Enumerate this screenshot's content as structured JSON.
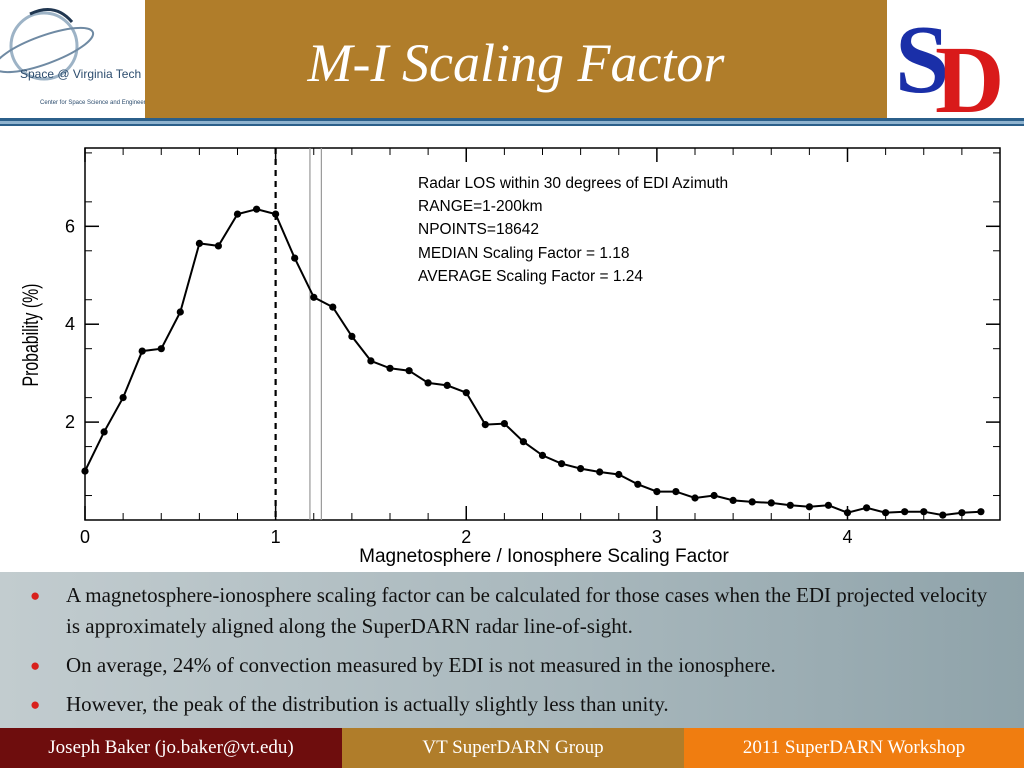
{
  "header": {
    "title": "M-I Scaling Factor",
    "left_logo": {
      "icon": "space-at-virginia-tech-logo",
      "name": "Space @ Virginia Tech",
      "subtitle": "Center for Space Science and Engineering Research"
    },
    "right_logo": {
      "icon": "superdarn-sd-logo",
      "letters": "SD"
    },
    "colors": {
      "banner": "#b07d2a",
      "stripe_dark": "#2b5f8a",
      "stripe_light": "#8fb3cf"
    }
  },
  "chart_data": {
    "type": "line",
    "xlabel": "Magnetosphere / Ionosphere Scaling Factor",
    "ylabel": "Probability (%)",
    "xlim": [
      0,
      4.8
    ],
    "ylim": [
      0,
      7.6
    ],
    "xticks": [
      0,
      1,
      2,
      3,
      4
    ],
    "yticks": [
      2,
      4,
      6
    ],
    "grid": false,
    "annotations": [
      "Radar LOS within 30 degrees of EDI Azimuth",
      "RANGE=1-200km",
      "NPOINTS=18642",
      "MEDIAN Scaling Factor = 1.18",
      "AVERAGE Scaling Factor = 1.24"
    ],
    "reference_lines": [
      {
        "x": 1.0,
        "style": "dashed",
        "color": "#000000"
      },
      {
        "x": 1.18,
        "style": "solid",
        "color": "#999999"
      },
      {
        "x": 1.24,
        "style": "solid",
        "color": "#999999"
      }
    ],
    "series": [
      {
        "x": [
          0,
          0.1,
          0.2,
          0.3,
          0.4,
          0.5,
          0.6,
          0.7,
          0.8,
          0.9,
          1.0,
          1.1,
          1.2,
          1.3,
          1.4,
          1.5,
          1.6,
          1.7,
          1.8,
          1.9,
          2.0,
          2.1,
          2.2,
          2.3,
          2.4,
          2.5,
          2.6,
          2.7,
          2.8,
          2.9,
          3.0,
          3.1,
          3.2,
          3.3,
          3.4,
          3.5,
          3.6,
          3.7,
          3.8,
          3.9,
          4.0,
          4.1,
          4.2,
          4.3,
          4.4,
          4.5,
          4.6,
          4.7
        ],
        "values": [
          1.0,
          1.8,
          2.5,
          3.45,
          3.5,
          4.25,
          5.65,
          5.6,
          6.25,
          6.35,
          6.25,
          5.35,
          4.55,
          4.35,
          3.75,
          3.25,
          3.1,
          3.05,
          2.8,
          2.75,
          2.6,
          1.95,
          1.97,
          1.6,
          1.32,
          1.15,
          1.05,
          0.98,
          0.93,
          0.73,
          0.58,
          0.58,
          0.45,
          0.5,
          0.4,
          0.37,
          0.35,
          0.3,
          0.27,
          0.3,
          0.15,
          0.25,
          0.15,
          0.17,
          0.17,
          0.1,
          0.15,
          0.17
        ]
      }
    ]
  },
  "bullets": [
    "A magnetosphere-ionosphere scaling factor can be calculated for those cases when the EDI projected velocity is approximately aligned along the SuperDARN radar line-of-sight.",
    "On average, 24% of convection measured by EDI is not measured in the ionosphere.",
    "However, the peak of the distribution is actually slightly less than unity."
  ],
  "footer": {
    "left": "Joseph Baker (jo.baker@vt.edu)",
    "middle": "VT  SuperDARN  Group",
    "right": "2011 SuperDARN Workshop",
    "colors": {
      "left": "#6e0d0d",
      "middle": "#b07d2a",
      "right": "#f07d10"
    }
  }
}
